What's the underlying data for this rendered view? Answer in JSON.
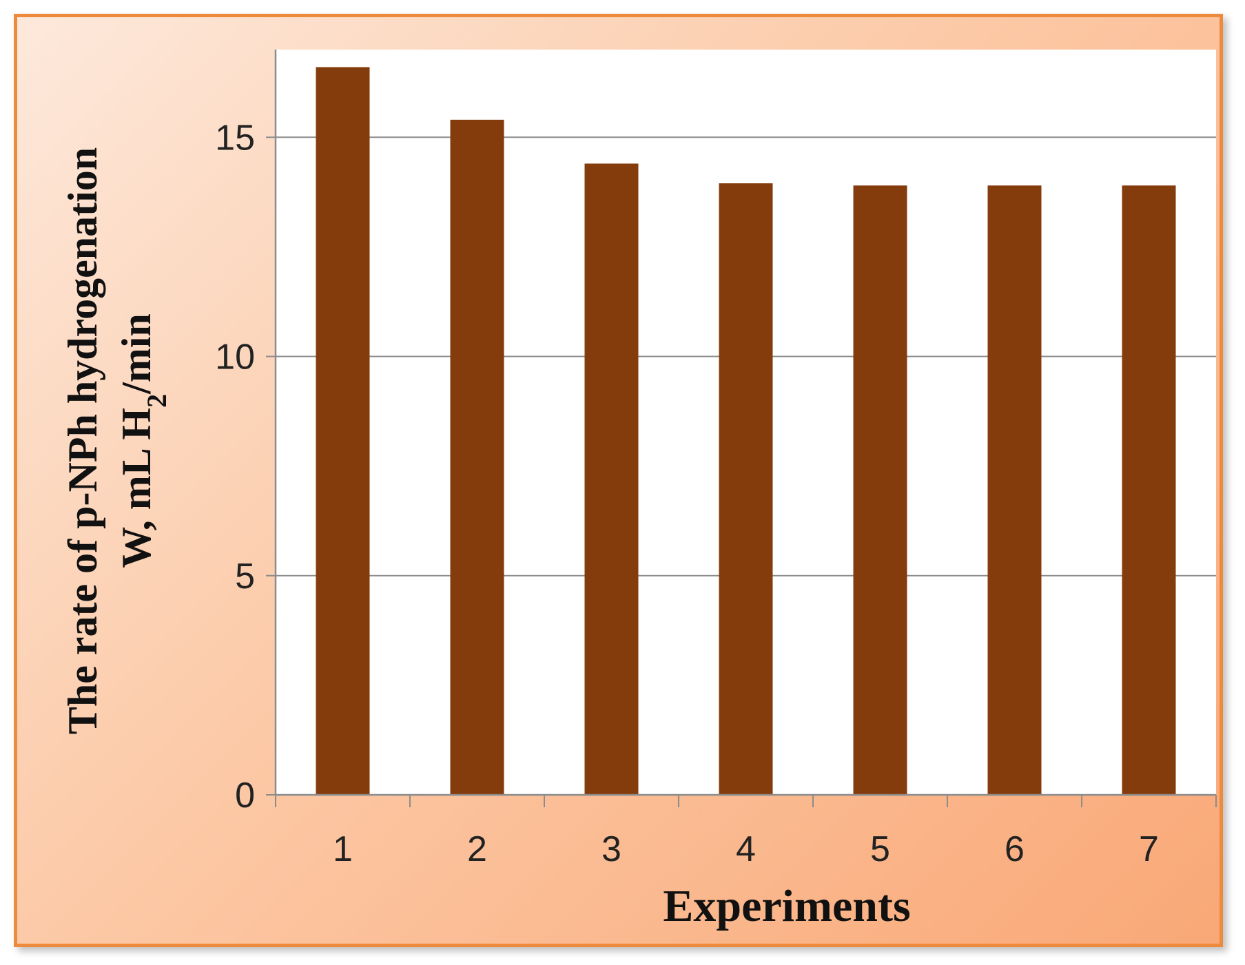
{
  "chart_data": {
    "type": "bar",
    "title": "",
    "categories": [
      "1",
      "2",
      "3",
      "4",
      "5",
      "6",
      "7"
    ],
    "values": [
      16.6,
      15.4,
      14.4,
      13.95,
      13.9,
      13.9,
      13.9
    ],
    "xlabel": "Experiments",
    "ylabel_line1": "The rate of p-NPh  hydrogenation",
    "ylabel_line2_prefix": "W, mL H",
    "ylabel_line2_subscript": "2",
    "ylabel_line2_suffix": "/min",
    "ylim": [
      0,
      17
    ],
    "yticks": [
      0,
      5,
      10,
      15
    ],
    "grid": true,
    "legend": "none",
    "bar_color": "#843c0c",
    "grid_color": "#8c8c8c",
    "frame_color": "#ee8a3c"
  }
}
